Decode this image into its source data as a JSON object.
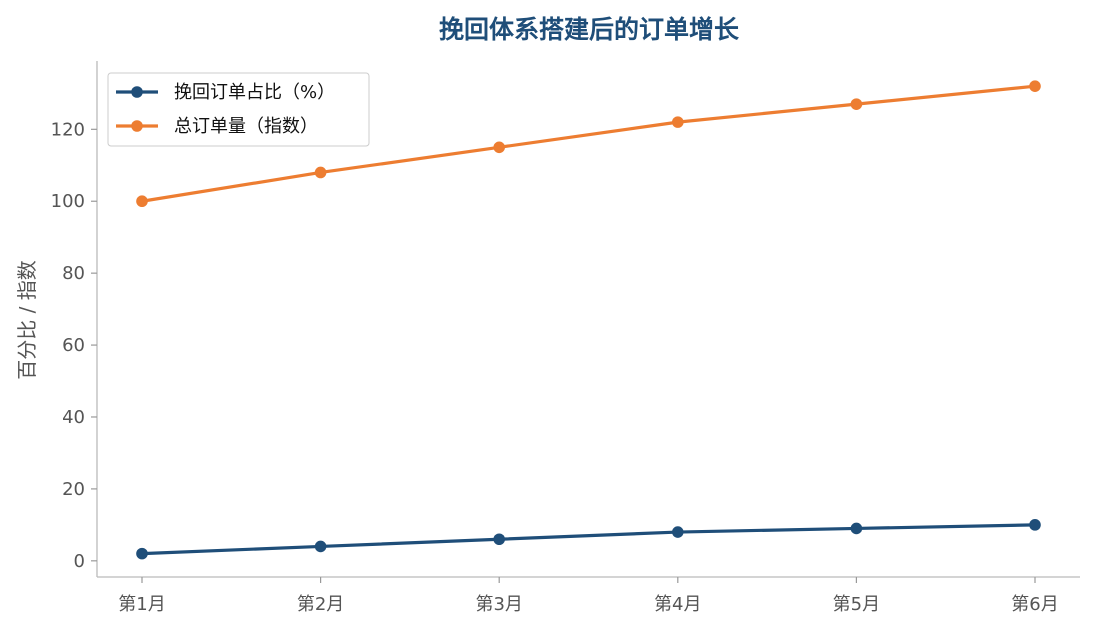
{
  "chart_data": {
    "type": "line",
    "title": "挽回体系搭建后的订单增长",
    "xlabel": "",
    "ylabel": "百分比 / 指数",
    "categories": [
      "第1月",
      "第2月",
      "第3月",
      "第4月",
      "第5月",
      "第6月"
    ],
    "series": [
      {
        "name": "挽回订单占比（%）",
        "color": "#1f4e79",
        "values": [
          2,
          4,
          6,
          8,
          9,
          10
        ]
      },
      {
        "name": "总订单量（指数）",
        "color": "#ed7d31",
        "values": [
          100,
          108,
          115,
          122,
          127,
          132
        ]
      }
    ],
    "ylim": [
      -4.5,
      139
    ],
    "yticks": [
      0,
      20,
      40,
      60,
      80,
      100,
      120
    ],
    "grid": false,
    "legend": "top-left"
  }
}
